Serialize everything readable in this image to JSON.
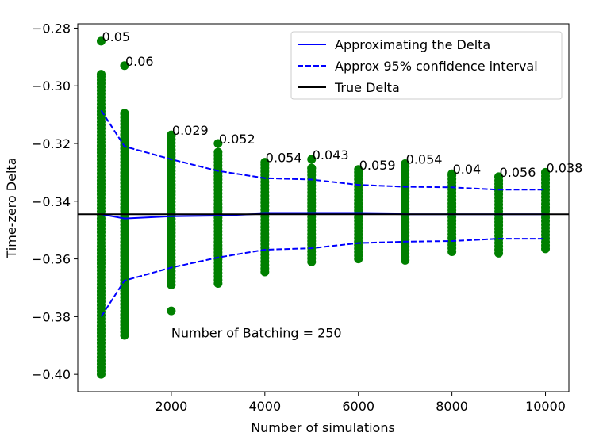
{
  "chart_data": {
    "type": "scatter",
    "xlabel": "Number of simulations",
    "ylabel": "Time-zero Delta",
    "xlim": [
      0,
      10500
    ],
    "ylim": [
      -0.406,
      -0.2785
    ],
    "xticks": [
      2000,
      4000,
      6000,
      8000,
      10000
    ],
    "xtick_labels": [
      "2000",
      "4000",
      "6000",
      "8000",
      "10000"
    ],
    "yticks": [
      -0.4,
      -0.38,
      -0.36,
      -0.34,
      -0.32,
      -0.3,
      -0.28
    ],
    "ytick_labels": [
      "−0.40",
      "−0.38",
      "−0.36",
      "−0.34",
      "−0.32",
      "−0.30",
      "−0.28"
    ],
    "grid": false,
    "legend_position": "top-right",
    "legend": [
      {
        "label": "Approximating the Delta",
        "color": "#0000ff",
        "style": "solid"
      },
      {
        "label": "Approx 95% confidence interval",
        "color": "#0000ff",
        "style": "dashed"
      },
      {
        "label": "True Delta",
        "color": "#000000",
        "style": "solid"
      }
    ],
    "annotation": "Number of Batching = 250",
    "annotation_position": {
      "x": 2000,
      "y": -0.3855
    },
    "true_delta": -0.3445,
    "colors": {
      "scatter": "#008000",
      "approx": "#0000ff",
      "true": "#000000"
    },
    "x": [
      500,
      1000,
      2000,
      3000,
      4000,
      5000,
      6000,
      7000,
      8000,
      9000,
      10000
    ],
    "approx": [
      -0.3445,
      -0.346,
      -0.3452,
      -0.345,
      -0.3443,
      -0.3443,
      -0.3443,
      -0.3445,
      -0.3445,
      -0.3445,
      -0.3445
    ],
    "ci_upper": [
      -0.3085,
      -0.321,
      -0.3255,
      -0.3295,
      -0.332,
      -0.3325,
      -0.3343,
      -0.335,
      -0.3352,
      -0.336,
      -0.336
    ],
    "ci_lower": [
      -0.38,
      -0.3675,
      -0.363,
      -0.3595,
      -0.3568,
      -0.3563,
      -0.3545,
      -0.354,
      -0.3538,
      -0.353,
      -0.353
    ],
    "scatter_ranges": [
      {
        "x": 500,
        "min": -0.4,
        "max": -0.296,
        "extra": [
          -0.2845
        ]
      },
      {
        "x": 1000,
        "min": -0.3865,
        "max": -0.3095,
        "extra": [
          -0.293
        ]
      },
      {
        "x": 2000,
        "min": -0.369,
        "max": -0.317,
        "extra": [
          -0.378
        ]
      },
      {
        "x": 3000,
        "min": -0.3685,
        "max": -0.323,
        "extra": [
          -0.32
        ]
      },
      {
        "x": 4000,
        "min": -0.3645,
        "max": -0.3265,
        "extra": []
      },
      {
        "x": 5000,
        "min": -0.361,
        "max": -0.3285,
        "extra": [
          -0.3255
        ]
      },
      {
        "x": 6000,
        "min": -0.36,
        "max": -0.329,
        "extra": []
      },
      {
        "x": 7000,
        "min": -0.3605,
        "max": -0.327,
        "extra": []
      },
      {
        "x": 8000,
        "min": -0.3575,
        "max": -0.3305,
        "extra": []
      },
      {
        "x": 9000,
        "min": -0.358,
        "max": -0.3315,
        "extra": []
      },
      {
        "x": 10000,
        "min": -0.3565,
        "max": -0.33,
        "extra": []
      }
    ],
    "point_labels": [
      {
        "x": 500,
        "y": -0.2845,
        "text": "0.05"
      },
      {
        "x": 1000,
        "y": -0.293,
        "text": "0.06"
      },
      {
        "x": 2000,
        "y": -0.317,
        "text": "0.029"
      },
      {
        "x": 3000,
        "y": -0.32,
        "text": "0.052"
      },
      {
        "x": 4000,
        "y": -0.3265,
        "text": "0.054"
      },
      {
        "x": 5000,
        "y": -0.3255,
        "text": "0.043"
      },
      {
        "x": 6000,
        "y": -0.329,
        "text": "0.059"
      },
      {
        "x": 7000,
        "y": -0.327,
        "text": "0.054"
      },
      {
        "x": 8000,
        "y": -0.3305,
        "text": "0.04"
      },
      {
        "x": 9000,
        "y": -0.3315,
        "text": "0.056"
      },
      {
        "x": 10000,
        "y": -0.33,
        "text": "0.038"
      }
    ]
  }
}
